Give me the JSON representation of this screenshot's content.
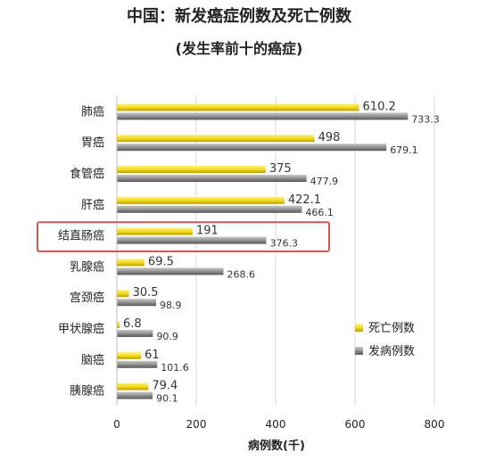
{
  "chart_data": {
    "type": "bar",
    "orientation": "horizontal",
    "title": "中国：新发癌症例数及死亡例数",
    "subtitle": "(发生率前十的癌症)",
    "xlabel": "病例数(千)",
    "xlim": [
      0,
      800
    ],
    "xticks": [
      "0",
      "200",
      "400",
      "600",
      "800"
    ],
    "grid": true,
    "legend_position": "right",
    "categories": [
      "肺癌",
      "胃癌",
      "食管癌",
      "肝癌",
      "结直肠癌",
      "乳腺癌",
      "宫颈癌",
      "甲状腺癌",
      "脑癌",
      "胰腺癌"
    ],
    "highlighted_category": "结直肠癌",
    "series": [
      {
        "name": "死亡例数",
        "color": "#f2d81c",
        "values": [
          610.2,
          498,
          375,
          422.1,
          191,
          69.5,
          30.5,
          6.8,
          61,
          79.4
        ]
      },
      {
        "name": "发病例数",
        "color": "#8c8c8c",
        "values": [
          733.3,
          679.1,
          477.9,
          466.1,
          376.3,
          268.6,
          98.9,
          90.9,
          101.6,
          90.1
        ]
      }
    ],
    "value_labels": {
      "死亡例数": [
        "610.2",
        "498",
        "375",
        "422.1",
        "191",
        "69.5",
        "30.5",
        "6.8",
        "61",
        "79.4"
      ],
      "发病例数": [
        "733.3",
        "679.1",
        "477.9",
        "466.1",
        "376.3",
        "268.6",
        "98.9",
        "90.9",
        "101.6",
        "90.1"
      ]
    },
    "highlight_color": "#d9534f"
  }
}
